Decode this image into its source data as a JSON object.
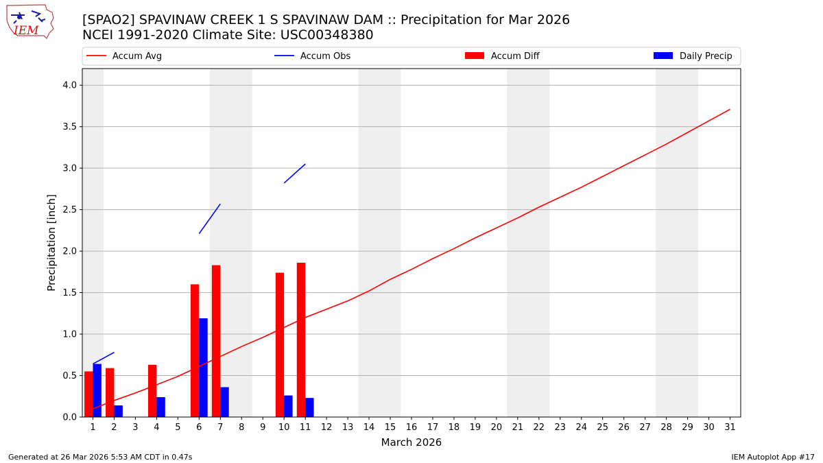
{
  "header": {
    "title_line1": "[SPAO2] SPAVINAW CREEK 1 S SPAVINAW DAM :: Precipitation for Mar 2026",
    "title_line2": "NCEI 1991-2020 Climate Site: USC00348380",
    "logo_text": "IEM"
  },
  "footer": {
    "left": "Generated at 26 Mar 2026 5:53 AM CDT in 0.47s",
    "right": "IEM Autoplot App #17"
  },
  "colors": {
    "accum_avg": "#ff0000",
    "accum_obs": "#0000ff",
    "accum_diff": "#ff0000",
    "daily_precip": "#0000ff",
    "weekend_shade": "#eeeeee",
    "grid": "#b0b0b0"
  },
  "chart_data": {
    "type": "bar",
    "xlabel": "March 2026",
    "ylabel": "Precipitation [inch]",
    "ylim": [
      0,
      4.2
    ],
    "yticks": [
      0.0,
      0.5,
      1.0,
      1.5,
      2.0,
      2.5,
      3.0,
      3.5,
      4.0
    ],
    "ytick_labels": [
      "0.0",
      "0.5",
      "1.0",
      "1.5",
      "2.0",
      "2.5",
      "3.0",
      "3.5",
      "4.0"
    ],
    "xlim": [
      0.5,
      31.5
    ],
    "days": [
      1,
      2,
      3,
      4,
      5,
      6,
      7,
      8,
      9,
      10,
      11,
      12,
      13,
      14,
      15,
      16,
      17,
      18,
      19,
      20,
      21,
      22,
      23,
      24,
      25,
      26,
      27,
      28,
      29,
      30,
      31
    ],
    "grid": "y",
    "legend_position": "top",
    "weekend_days": [
      1,
      7,
      8,
      14,
      15,
      21,
      22,
      28,
      29
    ],
    "series": [
      {
        "name": "Accum Avg",
        "kind": "line",
        "x": [
          1,
          2,
          3,
          4,
          5,
          6,
          7,
          8,
          9,
          10,
          11,
          12,
          13,
          14,
          15,
          16,
          17,
          18,
          19,
          20,
          21,
          22,
          23,
          24,
          25,
          26,
          27,
          28,
          29,
          30,
          31
        ],
        "values": [
          0.1,
          0.2,
          0.29,
          0.39,
          0.49,
          0.61,
          0.73,
          0.85,
          0.96,
          1.08,
          1.2,
          1.3,
          1.4,
          1.52,
          1.66,
          1.78,
          1.91,
          2.03,
          2.16,
          2.28,
          2.4,
          2.53,
          2.65,
          2.77,
          2.9,
          3.03,
          3.16,
          3.29,
          3.43,
          3.57,
          3.71
        ]
      },
      {
        "name": "Accum Obs",
        "kind": "line",
        "x": [
          1,
          2,
          3,
          4,
          5,
          6,
          7,
          8,
          9,
          10,
          11
        ],
        "values": [
          0.64,
          0.78,
          null,
          null,
          null,
          2.21,
          2.57,
          null,
          null,
          2.82,
          3.05
        ]
      },
      {
        "name": "Accum Diff",
        "kind": "bar",
        "x": [
          1,
          2,
          3,
          4,
          5,
          6,
          7,
          8,
          9,
          10,
          11
        ],
        "values": [
          0.55,
          0.59,
          0,
          0.63,
          0,
          1.6,
          1.83,
          0,
          0,
          1.74,
          1.86
        ]
      },
      {
        "name": "Daily Precip",
        "kind": "bar",
        "x": [
          1,
          2,
          3,
          4,
          5,
          6,
          7,
          8,
          9,
          10,
          11
        ],
        "values": [
          0.64,
          0.14,
          0,
          0.24,
          0,
          1.19,
          0.36,
          0,
          0,
          0.26,
          0.23
        ]
      }
    ]
  }
}
